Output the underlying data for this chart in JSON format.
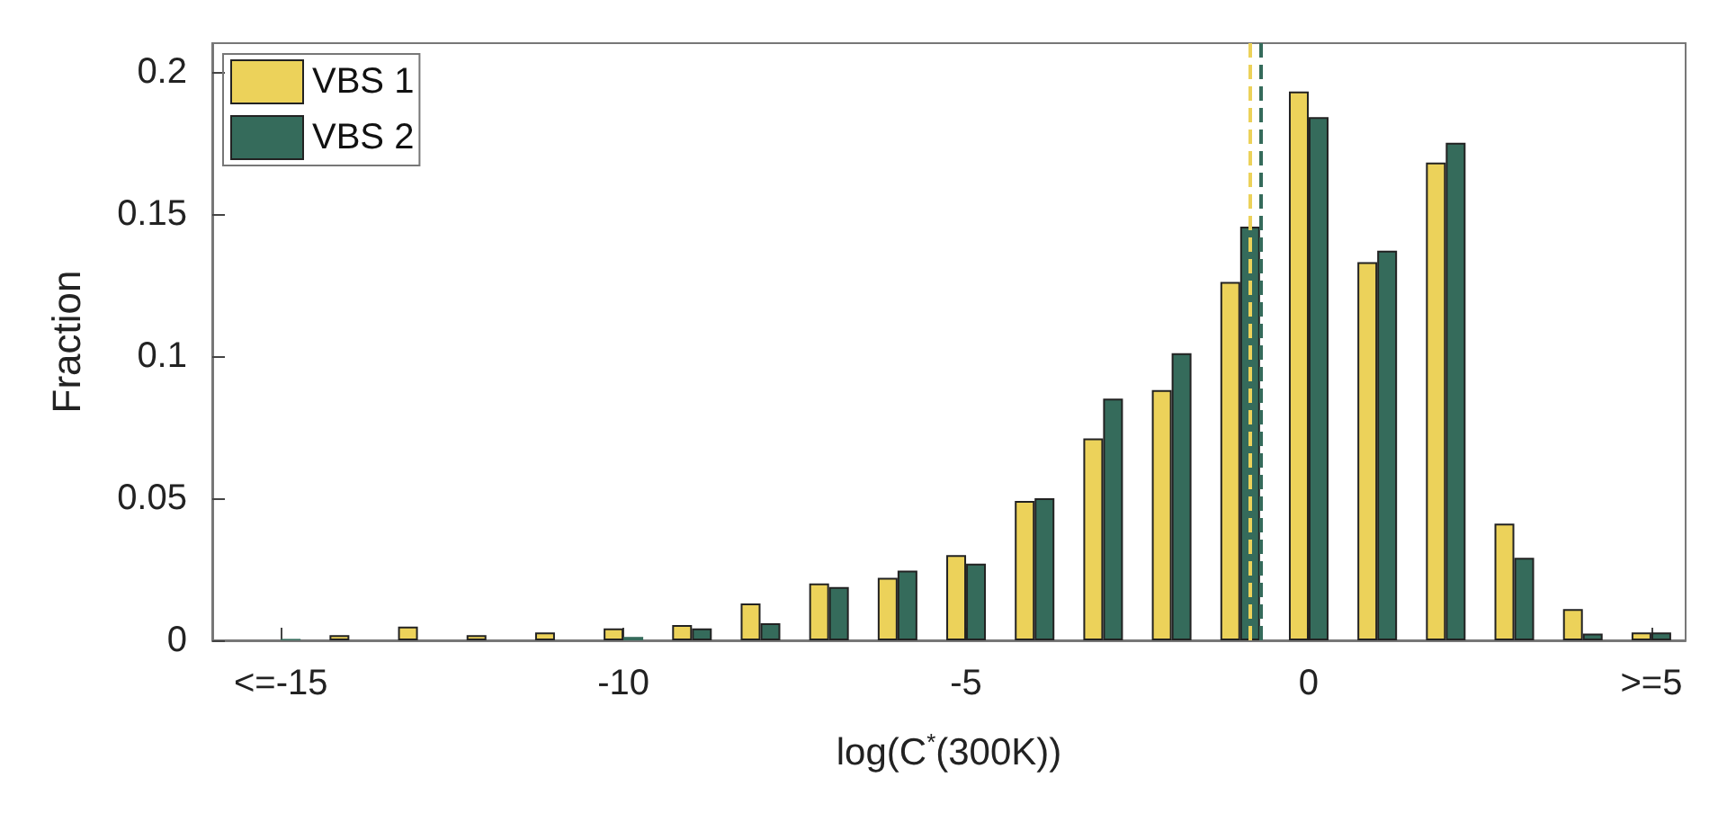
{
  "chart_data": {
    "type": "bar",
    "xlabel": "log(C$^{*}$(300K))",
    "ylabel": "Fraction",
    "x": [
      -15,
      -14,
      -13,
      -12,
      -11,
      -10,
      -9,
      -8,
      -7,
      -6,
      -5,
      -4,
      -3,
      -2,
      -1,
      0,
      1,
      2,
      3,
      4,
      5
    ],
    "series": [
      {
        "name": "VBS 1",
        "color": "#ecd25a",
        "values": [
          0,
          0.0018,
          0.0048,
          0.0018,
          0.0028,
          0.0042,
          0.0054,
          0.013,
          0.02,
          0.022,
          0.03,
          0.049,
          0.071,
          0.088,
          0.126,
          0.193,
          0.133,
          0.168,
          0.041,
          0.011,
          0.0028
        ]
      },
      {
        "name": "VBS 2",
        "color": "#356b5b",
        "values": [
          0.0005,
          0,
          0,
          0,
          0,
          0.0012,
          0.0042,
          0.006,
          0.0187,
          0.0245,
          0.027,
          0.05,
          0.085,
          0.101,
          0.1455,
          0.184,
          0.137,
          0.175,
          0.029,
          0.0024,
          0.0028
        ]
      }
    ],
    "xlim": [
      -16,
      5.5
    ],
    "xticks": [
      {
        "value": -15,
        "label": "<=-15"
      },
      -10,
      -5,
      0,
      {
        "value": 5,
        "label": ">=5"
      }
    ],
    "ylim": [
      0,
      0.21
    ],
    "yticks": [
      0,
      0.05,
      0.1,
      0.15,
      0.2
    ],
    "ref_lines": [
      {
        "axis": "x",
        "value": -0.86,
        "color": "#ecd25a",
        "line_style": "dashed"
      },
      {
        "axis": "x",
        "value": -0.7,
        "color": "#356b5b",
        "line_style": "dashed"
      }
    ],
    "legend": "top left",
    "grid": false
  }
}
